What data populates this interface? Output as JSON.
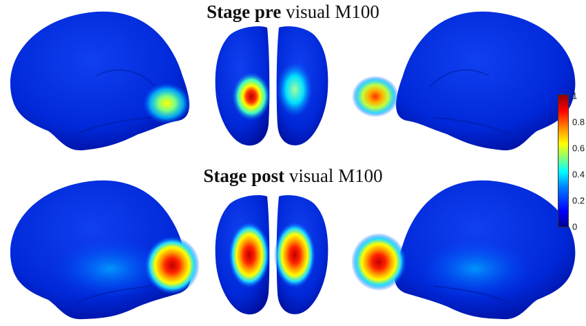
{
  "rows": [
    {
      "bold": "Stage pre",
      "rest": " visual M100"
    },
    {
      "bold": "Stage post",
      "rest": " visual M100"
    }
  ],
  "colorbar": {
    "ticks": [
      "1",
      "0.8",
      "0.6",
      "0.4",
      "0.2",
      "0"
    ],
    "colormap": [
      "#00008f",
      "#0000ff",
      "#00ffff",
      "#ffff00",
      "#ff0000",
      "#8f0000"
    ]
  }
}
